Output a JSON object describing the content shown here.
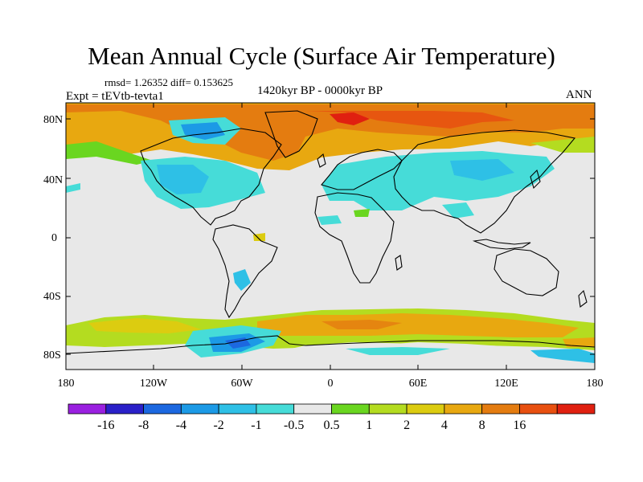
{
  "title": "Mean Annual Cycle (Surface Air Temperature)",
  "stats": "rmsd= 1.26352 diff= 0.153625",
  "experiment": "Expt = tEVtb-tevta1",
  "period": "1420kyr BP - 0000kyr BP",
  "season": "ANN",
  "map": {
    "lat_ticks": [
      "80N",
      "40N",
      "0",
      "40S",
      "80S"
    ],
    "lon_ticks": [
      "180",
      "120W",
      "60W",
      "0",
      "60E",
      "120E",
      "180"
    ],
    "background_color": "#e8e8e8"
  },
  "colorbar": {
    "colors": [
      "#9a20e0",
      "#2a20c8",
      "#1c68e0",
      "#1c9ae6",
      "#2ec0e6",
      "#46dcd8",
      "#e8e8e8",
      "#6ad620",
      "#b4dc20",
      "#dccc10",
      "#e8a810",
      "#e47c10",
      "#e85010",
      "#e02010"
    ],
    "labels": [
      "-16",
      "-8",
      "-4",
      "-2",
      "-1",
      "-0.5",
      "0.5",
      "1",
      "2",
      "4",
      "8",
      "16"
    ]
  }
}
